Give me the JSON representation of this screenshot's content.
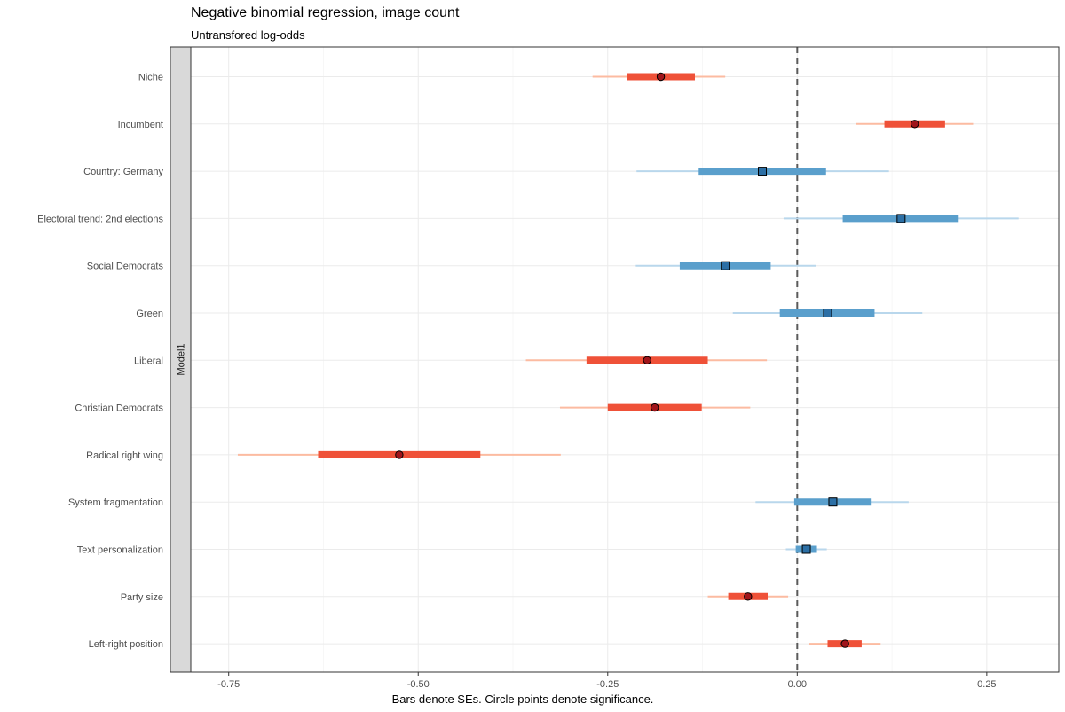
{
  "chart_data": {
    "type": "scatter",
    "title": "Negative binomial regression, image count",
    "subtitle": "Untransfored log-odds",
    "xlabel": "Bars denote SEs. Circle points denote significance.",
    "ylabel": "",
    "facet_label": "Model1",
    "xlim": [
      -0.8,
      0.345
    ],
    "xticks": [
      -0.75,
      -0.5,
      -0.25,
      0.0,
      0.25
    ],
    "xtick_labels": [
      "-0.75",
      "-0.50",
      "-0.25",
      "0.00",
      "0.25"
    ],
    "reference_line": 0,
    "grid": true,
    "legend": "none",
    "colors": {
      "significant_thick": "#ef5138",
      "significant_thin": "#fcbba1",
      "nonsignificant_thick": "#5a9fcc",
      "nonsignificant_thin": "#b9d7ec",
      "significant_point": "#a0141a",
      "nonsignificant_point": "#2c6fa5"
    },
    "terms": [
      {
        "label": "Niche",
        "estimate": -0.18,
        "se_low": -0.225,
        "se_high": -0.135,
        "ci_low": -0.27,
        "ci_high": -0.095,
        "significant": true
      },
      {
        "label": "Incumbent",
        "estimate": 0.155,
        "se_low": 0.115,
        "se_high": 0.195,
        "ci_low": 0.078,
        "ci_high": 0.232,
        "significant": true
      },
      {
        "label": "Country: Germany",
        "estimate": -0.046,
        "se_low": -0.13,
        "se_high": 0.038,
        "ci_low": -0.212,
        "ci_high": 0.121,
        "significant": false
      },
      {
        "label": "Electoral trend: 2nd elections",
        "estimate": 0.137,
        "se_low": 0.06,
        "se_high": 0.213,
        "ci_low": -0.018,
        "ci_high": 0.292,
        "significant": false
      },
      {
        "label": "Social Democrats",
        "estimate": -0.095,
        "se_low": -0.155,
        "se_high": -0.035,
        "ci_low": -0.213,
        "ci_high": 0.025,
        "significant": false
      },
      {
        "label": "Green",
        "estimate": 0.04,
        "se_low": -0.023,
        "se_high": 0.102,
        "ci_low": -0.085,
        "ci_high": 0.165,
        "significant": false
      },
      {
        "label": "Liberal",
        "estimate": -0.198,
        "se_low": -0.278,
        "se_high": -0.118,
        "ci_low": -0.358,
        "ci_high": -0.04,
        "significant": true
      },
      {
        "label": "Christian Democrats",
        "estimate": -0.188,
        "se_low": -0.25,
        "se_high": -0.126,
        "ci_low": -0.313,
        "ci_high": -0.062,
        "significant": true
      },
      {
        "label": "Radical right wing",
        "estimate": -0.525,
        "se_low": -0.632,
        "se_high": -0.418,
        "ci_low": -0.738,
        "ci_high": -0.312,
        "significant": true
      },
      {
        "label": "System fragmentation",
        "estimate": 0.047,
        "se_low": -0.004,
        "se_high": 0.097,
        "ci_low": -0.055,
        "ci_high": 0.147,
        "significant": false
      },
      {
        "label": "Text personalization",
        "estimate": 0.012,
        "se_low": -0.002,
        "se_high": 0.026,
        "ci_low": -0.015,
        "ci_high": 0.039,
        "significant": false
      },
      {
        "label": "Party size",
        "estimate": -0.065,
        "se_low": -0.091,
        "se_high": -0.039,
        "ci_low": -0.118,
        "ci_high": -0.012,
        "significant": true
      },
      {
        "label": "Left-right position",
        "estimate": 0.063,
        "se_low": 0.04,
        "se_high": 0.085,
        "ci_low": 0.016,
        "ci_high": 0.11,
        "significant": true
      }
    ]
  }
}
